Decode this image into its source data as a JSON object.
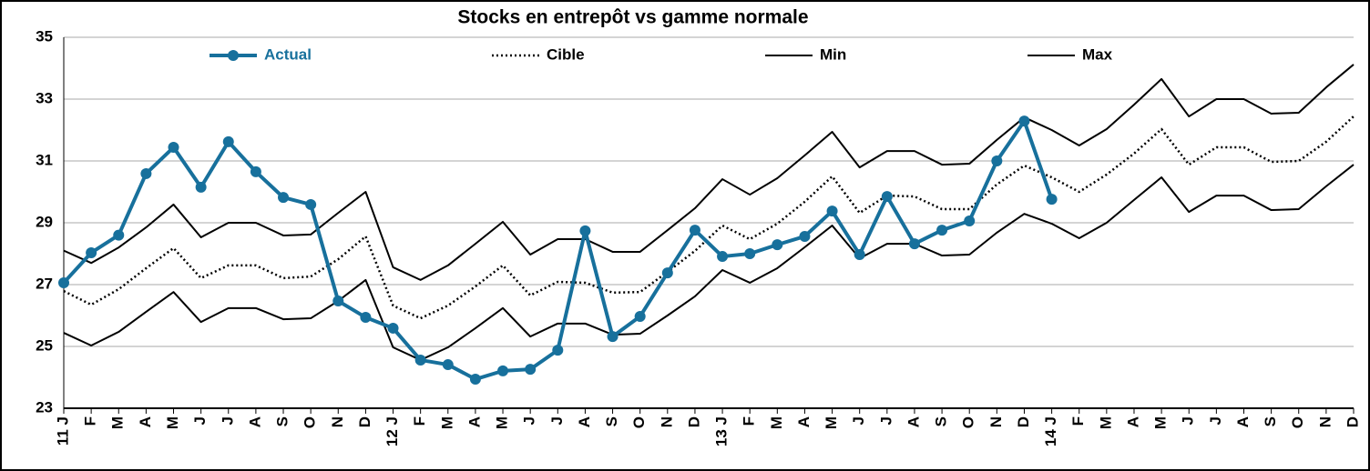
{
  "chart_data": {
    "type": "line",
    "title": "Stocks en entrepôt vs gamme normale",
    "categories": [
      "11 J",
      "F",
      "M",
      "A",
      "M",
      "J",
      "J",
      "A",
      "S",
      "O",
      "N",
      "D",
      "12 J",
      "F",
      "M",
      "A",
      "M",
      "J",
      "J",
      "A",
      "S",
      "O",
      "N",
      "D",
      "13 J",
      "F",
      "M",
      "A",
      "M",
      "J",
      "J",
      "A",
      "S",
      "O",
      "N",
      "D",
      "14 J",
      "F",
      "M",
      "A",
      "M",
      "J",
      "J",
      "A",
      "S",
      "O",
      "N",
      "D"
    ],
    "series": [
      {
        "name": "Actual",
        "color": "#17709c",
        "style": "solid-marker",
        "values": [
          27.06,
          28.03,
          28.6,
          30.59,
          31.44,
          30.15,
          31.62,
          30.65,
          29.82,
          29.59,
          26.47,
          25.94,
          25.59,
          24.56,
          24.41,
          23.94,
          24.21,
          24.26,
          24.88,
          28.74,
          25.32,
          25.97,
          27.38,
          28.76,
          27.91,
          28.0,
          28.29,
          28.56,
          29.38,
          27.97,
          29.85,
          28.32,
          28.76,
          29.06,
          31.0,
          32.29,
          29.76,
          null,
          null,
          null,
          null,
          null,
          null,
          null,
          null,
          null,
          null,
          null
        ]
      },
      {
        "name": "Cible",
        "color": "#000000",
        "style": "dotted",
        "values": [
          26.79,
          26.35,
          26.85,
          27.53,
          28.18,
          27.21,
          27.62,
          27.62,
          27.21,
          27.26,
          27.82,
          28.56,
          26.32,
          25.91,
          26.32,
          26.94,
          27.62,
          26.65,
          27.09,
          27.06,
          26.74,
          26.76,
          27.41,
          28.09,
          28.91,
          28.47,
          28.97,
          29.68,
          30.5,
          29.32,
          29.88,
          29.85,
          29.44,
          29.44,
          30.24,
          30.85,
          30.47,
          30.0,
          30.56,
          31.24,
          32.03,
          30.88,
          31.44,
          31.44,
          30.97,
          31.0,
          31.62,
          32.44
        ]
      },
      {
        "name": "Min",
        "color": "#000000",
        "style": "solid",
        "values": [
          25.44,
          25.03,
          25.47,
          26.12,
          26.76,
          25.79,
          26.24,
          26.24,
          25.88,
          25.91,
          26.47,
          27.15,
          24.97,
          24.56,
          24.97,
          25.59,
          26.24,
          25.32,
          25.74,
          25.74,
          25.38,
          25.41,
          26.0,
          26.62,
          27.47,
          27.06,
          27.53,
          28.21,
          28.91,
          27.85,
          28.32,
          28.32,
          27.94,
          27.97,
          28.68,
          29.29,
          28.97,
          28.5,
          29.0,
          29.74,
          30.47,
          29.35,
          29.88,
          29.88,
          29.41,
          29.44,
          30.18,
          30.88
        ]
      },
      {
        "name": "Max",
        "color": "#000000",
        "style": "solid",
        "values": [
          28.1,
          27.7,
          28.2,
          28.85,
          29.59,
          28.53,
          29.0,
          29.0,
          28.59,
          28.62,
          29.32,
          30.0,
          27.56,
          27.15,
          27.62,
          28.32,
          29.03,
          27.97,
          28.47,
          28.47,
          28.06,
          28.06,
          28.76,
          29.47,
          30.41,
          29.91,
          30.44,
          31.18,
          31.94,
          30.79,
          31.32,
          31.32,
          30.88,
          30.91,
          31.68,
          32.41,
          32.0,
          31.5,
          32.03,
          32.82,
          33.65,
          32.44,
          33.0,
          33.0,
          32.53,
          32.56,
          33.38,
          34.12
        ]
      }
    ],
    "ylim": [
      23,
      35
    ],
    "yticks": [
      23,
      25,
      27,
      29,
      31,
      33,
      35
    ],
    "grid": true,
    "legend": "top"
  }
}
